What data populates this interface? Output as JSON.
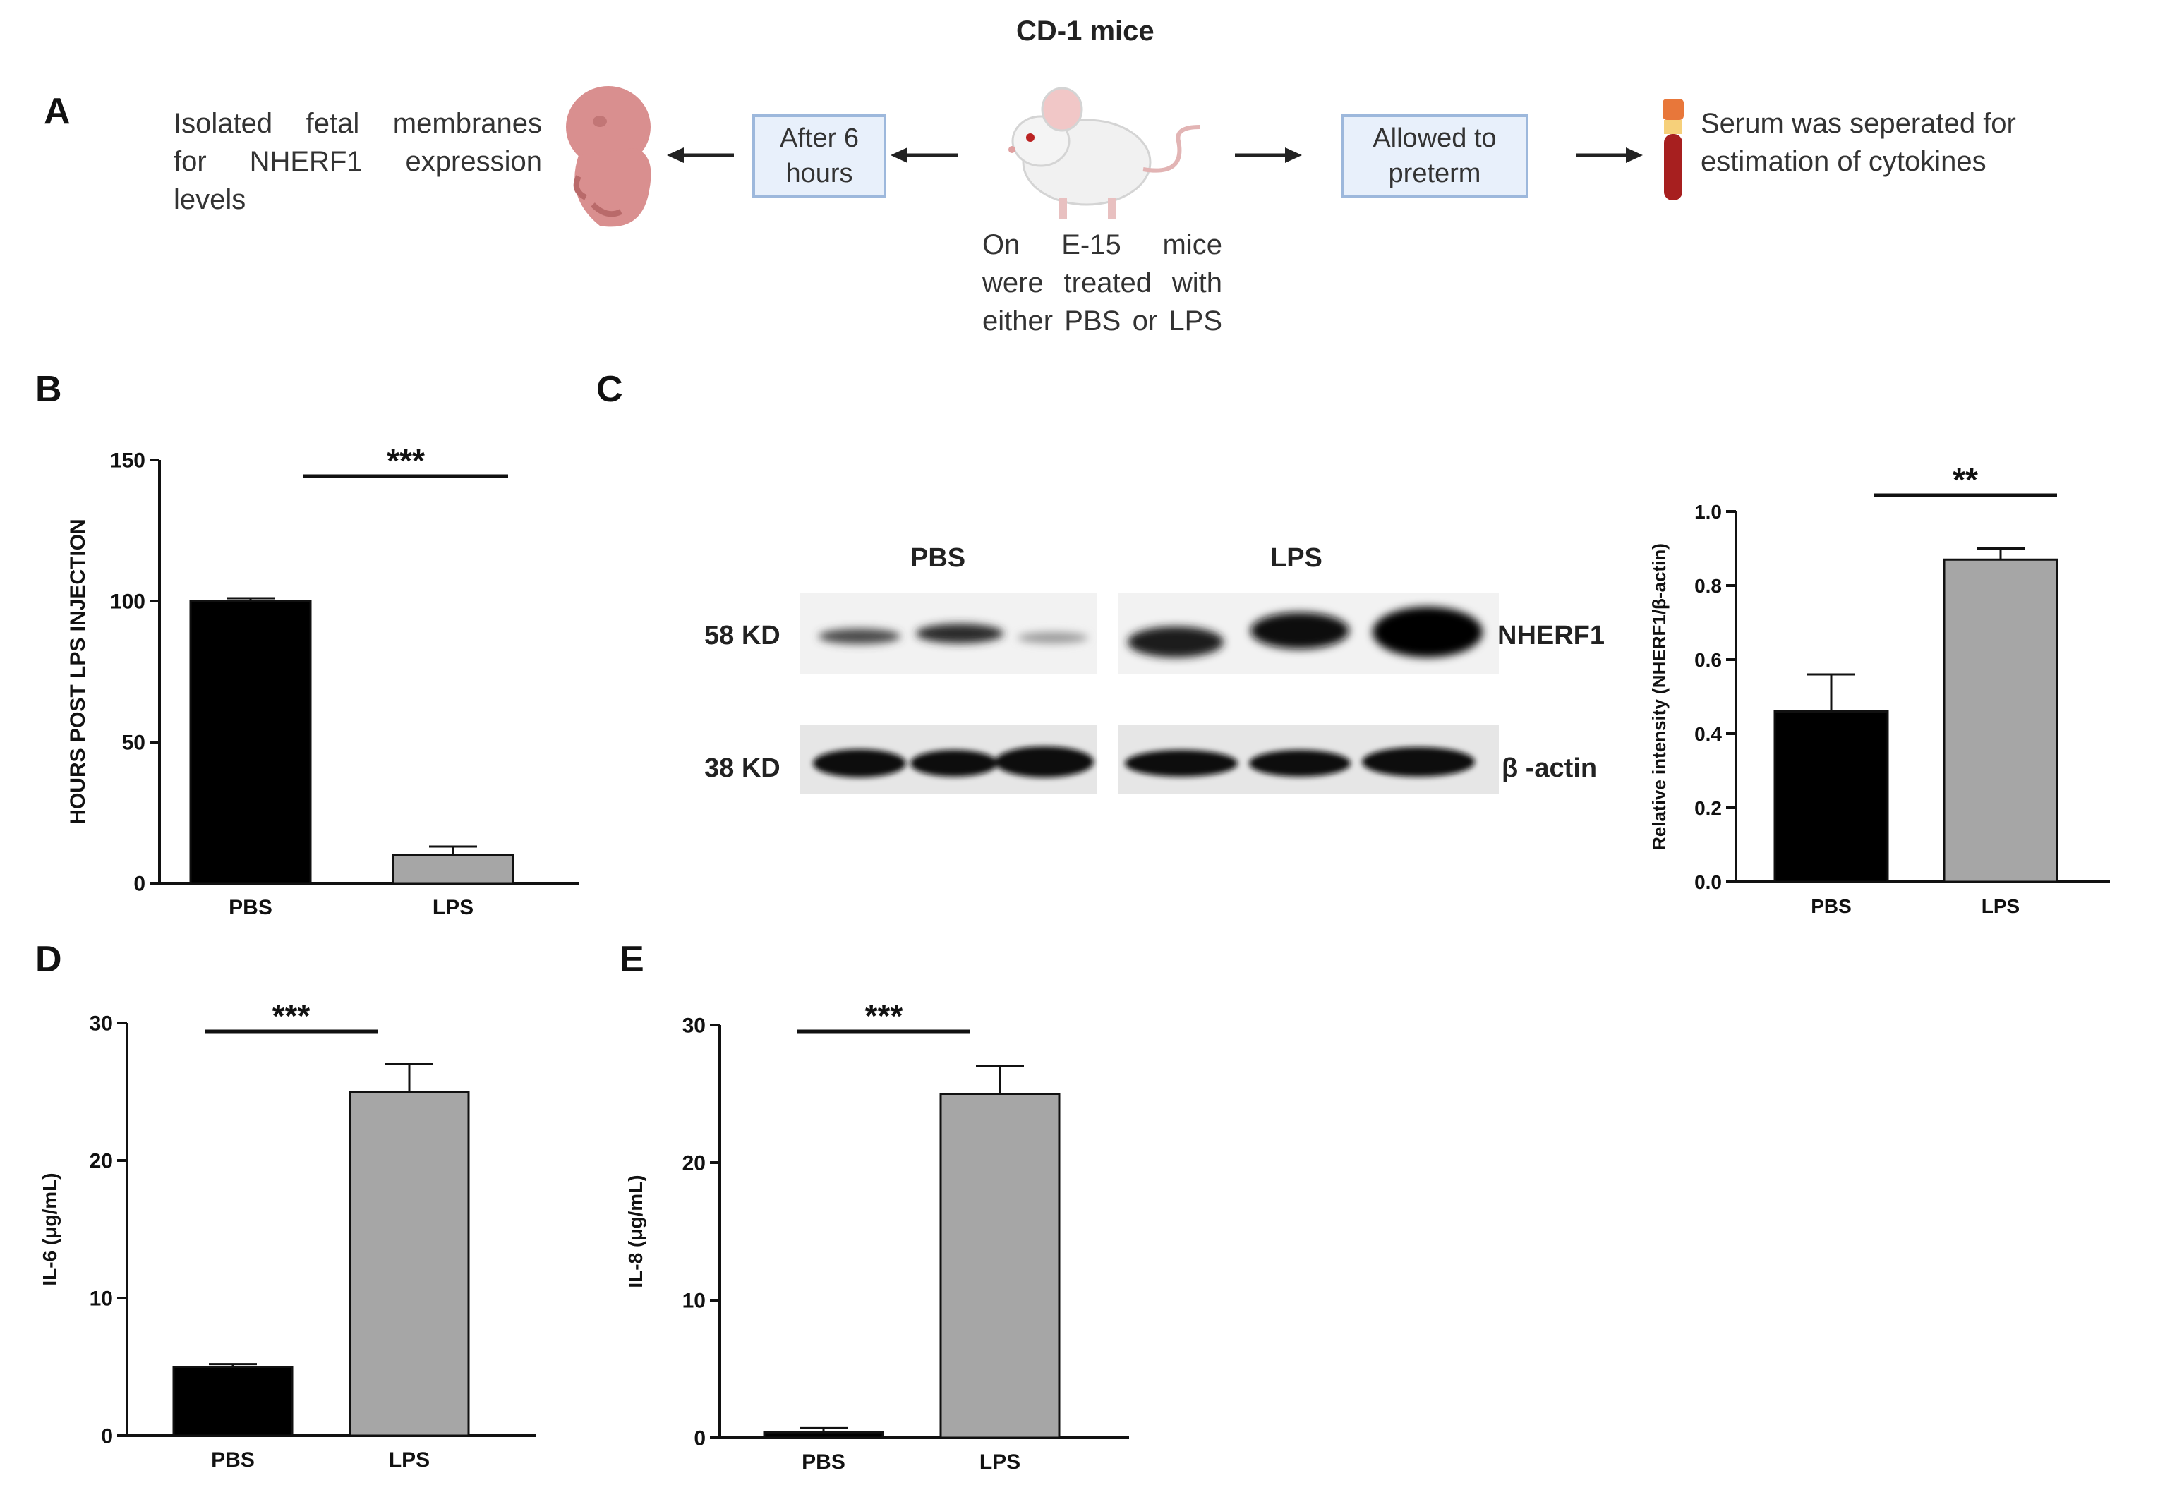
{
  "panels": {
    "a": "A",
    "b": "B",
    "c": "C",
    "d": "D",
    "e": "E"
  },
  "flow": {
    "title": "CD-1 mice",
    "left_text_lines": [
      "Isolated fetal membranes",
      "for NHERF1 expression",
      "levels"
    ],
    "box_left": [
      "After 6",
      "hours"
    ],
    "center_text_lines": [
      "On E-15 mice",
      "were treated with",
      "either PBS or LPS"
    ],
    "box_right": [
      "Allowed to",
      "preterm"
    ],
    "right_text_lines": [
      "Serum was seperated for",
      "estimation of cytokines"
    ],
    "icons": [
      "fetus-icon",
      "mouse-icon",
      "blood-tube-icon",
      "arrow-left-icon",
      "arrow-right-icon"
    ]
  },
  "western_blot": {
    "group_labels": [
      "PBS",
      "LPS"
    ],
    "size_labels": [
      "58 KD",
      "38 KD"
    ],
    "protein_labels": [
      "NHERF1",
      "β -actin"
    ]
  },
  "chart_data": [
    {
      "id": "B",
      "type": "bar",
      "categories": [
        "PBS",
        "LPS"
      ],
      "values": [
        100,
        10
      ],
      "errors": [
        1,
        3
      ],
      "ylabel": "HOURS POST LPS INJECTION",
      "ylim": [
        0,
        150
      ],
      "ticks": [
        "0",
        "50",
        "100",
        "150"
      ],
      "significance": "***",
      "colors": [
        "#000000",
        "#a6a6a6"
      ]
    },
    {
      "id": "C",
      "type": "bar",
      "categories": [
        "PBS",
        "LPS"
      ],
      "values": [
        0.46,
        0.87
      ],
      "errors": [
        0.1,
        0.03
      ],
      "ylabel": "Relative intensity (NHERF1/β-actin)",
      "ylim": [
        0,
        1.0
      ],
      "ticks": [
        "0.0",
        "0.2",
        "0.4",
        "0.6",
        "0.8",
        "1.0"
      ],
      "significance": "**",
      "colors": [
        "#000000",
        "#a6a6a6"
      ]
    },
    {
      "id": "D",
      "type": "bar",
      "categories": [
        "PBS",
        "LPS"
      ],
      "values": [
        5,
        25
      ],
      "errors": [
        0.2,
        2
      ],
      "ylabel": "IL-6 (μg/mL)",
      "ylim": [
        0,
        30
      ],
      "ticks": [
        "0",
        "10",
        "20",
        "30"
      ],
      "significance": "***",
      "colors": [
        "#000000",
        "#a6a6a6"
      ]
    },
    {
      "id": "E",
      "type": "bar",
      "categories": [
        "PBS",
        "LPS"
      ],
      "values": [
        0.4,
        25
      ],
      "errors": [
        0.3,
        2
      ],
      "ylabel": "IL-8 (μg/mL)",
      "ylim": [
        0,
        30
      ],
      "ticks": [
        "0",
        "10",
        "20",
        "30"
      ],
      "significance": "***",
      "colors": [
        "#000000",
        "#a6a6a6"
      ]
    }
  ]
}
